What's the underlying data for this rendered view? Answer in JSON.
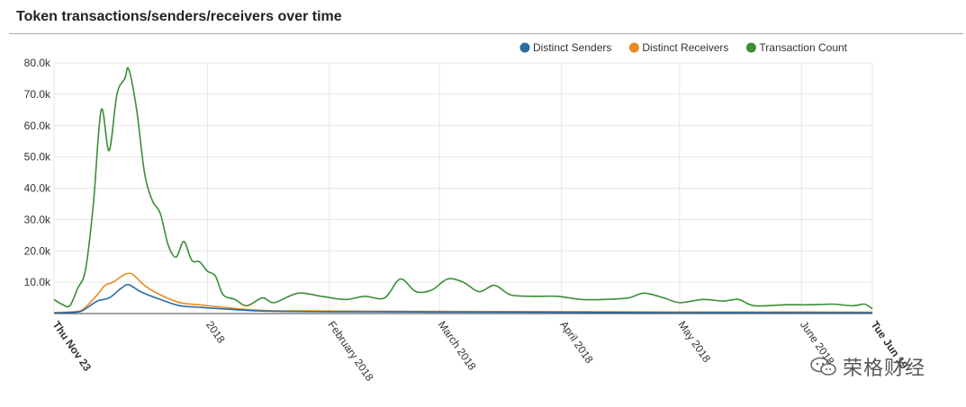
{
  "header": {
    "title": "Token transactions/senders/receivers over time"
  },
  "watermark": {
    "text": "荣格财经"
  },
  "colors": {
    "senders": "#2b6ca3",
    "receivers": "#e8891f",
    "transactions": "#3a8e36",
    "grid": "#e6e6e6",
    "axis": "#444444"
  },
  "chart_data": {
    "type": "line",
    "title": "Token transactions/senders/receivers over time",
    "legend_position": "top-right",
    "grid": true,
    "ylim": [
      0,
      80000
    ],
    "y_ticks": [
      10000,
      20000,
      30000,
      40000,
      50000,
      60000,
      70000,
      80000
    ],
    "y_tick_labels": [
      "10.0k",
      "20.0k",
      "30.0k",
      "40.0k",
      "50.0k",
      "60.0k",
      "70.0k",
      "80.0k"
    ],
    "xlim": [
      "2017-11-23",
      "2018-06-19"
    ],
    "x_ticks": [
      {
        "date": "2017-11-23",
        "label": "Thu Nov 23",
        "bold": true
      },
      {
        "date": "2018-01-01",
        "label": "2018",
        "bold": false
      },
      {
        "date": "2018-02-01",
        "label": "February 2018",
        "bold": false
      },
      {
        "date": "2018-03-01",
        "label": "March 2018",
        "bold": false
      },
      {
        "date": "2018-04-01",
        "label": "April 2018",
        "bold": false
      },
      {
        "date": "2018-05-01",
        "label": "May 2018",
        "bold": false
      },
      {
        "date": "2018-06-01",
        "label": "June 2018",
        "bold": false
      },
      {
        "date": "2018-06-19",
        "label": "Tue Jun 19",
        "bold": true
      }
    ],
    "series": [
      {
        "name": "Transaction Count",
        "color": "#3a8e36",
        "points": [
          [
            "2017-11-23",
            4500
          ],
          [
            "2017-11-25",
            3000
          ],
          [
            "2017-11-27",
            2500
          ],
          [
            "2017-11-29",
            8000
          ],
          [
            "2017-12-01",
            14000
          ],
          [
            "2017-12-03",
            35000
          ],
          [
            "2017-12-05",
            65000
          ],
          [
            "2017-12-07",
            52000
          ],
          [
            "2017-12-09",
            70000
          ],
          [
            "2017-12-11",
            75000
          ],
          [
            "2017-12-12",
            78000
          ],
          [
            "2017-12-14",
            65000
          ],
          [
            "2017-12-16",
            45000
          ],
          [
            "2017-12-18",
            36000
          ],
          [
            "2017-12-20",
            32000
          ],
          [
            "2017-12-22",
            22000
          ],
          [
            "2017-12-24",
            18000
          ],
          [
            "2017-12-26",
            23000
          ],
          [
            "2017-12-28",
            17000
          ],
          [
            "2017-12-30",
            16500
          ],
          [
            "2018-01-01",
            13500
          ],
          [
            "2018-01-03",
            12000
          ],
          [
            "2018-01-05",
            6000
          ],
          [
            "2018-01-08",
            4500
          ],
          [
            "2018-01-11",
            2500
          ],
          [
            "2018-01-15",
            5000
          ],
          [
            "2018-01-18",
            3500
          ],
          [
            "2018-01-24",
            6500
          ],
          [
            "2018-01-30",
            5500
          ],
          [
            "2018-02-05",
            4500
          ],
          [
            "2018-02-10",
            5500
          ],
          [
            "2018-02-15",
            5000
          ],
          [
            "2018-02-19",
            11000
          ],
          [
            "2018-02-23",
            7000
          ],
          [
            "2018-02-27",
            7500
          ],
          [
            "2018-03-03",
            11000
          ],
          [
            "2018-03-07",
            10000
          ],
          [
            "2018-03-11",
            7000
          ],
          [
            "2018-03-15",
            9000
          ],
          [
            "2018-03-19",
            6000
          ],
          [
            "2018-03-25",
            5500
          ],
          [
            "2018-03-31",
            5500
          ],
          [
            "2018-04-06",
            4500
          ],
          [
            "2018-04-12",
            4500
          ],
          [
            "2018-04-18",
            5000
          ],
          [
            "2018-04-22",
            6500
          ],
          [
            "2018-04-27",
            5000
          ],
          [
            "2018-05-01",
            3500
          ],
          [
            "2018-05-07",
            4500
          ],
          [
            "2018-05-12",
            4000
          ],
          [
            "2018-05-16",
            4500
          ],
          [
            "2018-05-20",
            2500
          ],
          [
            "2018-05-28",
            2800
          ],
          [
            "2018-06-03",
            2800
          ],
          [
            "2018-06-09",
            3000
          ],
          [
            "2018-06-14",
            2500
          ],
          [
            "2018-06-17",
            3000
          ],
          [
            "2018-06-19",
            1500
          ]
        ]
      },
      {
        "name": "Distinct Receivers",
        "color": "#e8891f",
        "points": [
          [
            "2017-11-23",
            300
          ],
          [
            "2017-11-29",
            700
          ],
          [
            "2017-12-01",
            2000
          ],
          [
            "2017-12-04",
            6000
          ],
          [
            "2017-12-06",
            9000
          ],
          [
            "2017-12-08",
            10000
          ],
          [
            "2017-12-11",
            12500
          ],
          [
            "2017-12-13",
            12500
          ],
          [
            "2017-12-16",
            9000
          ],
          [
            "2017-12-20",
            6000
          ],
          [
            "2017-12-25",
            3500
          ],
          [
            "2017-12-30",
            2800
          ],
          [
            "2018-01-05",
            2000
          ],
          [
            "2018-01-15",
            1000
          ],
          [
            "2018-02-01",
            800
          ],
          [
            "2018-03-01",
            700
          ],
          [
            "2018-04-01",
            600
          ],
          [
            "2018-05-01",
            500
          ],
          [
            "2018-06-01",
            500
          ],
          [
            "2018-06-19",
            400
          ]
        ]
      },
      {
        "name": "Distinct Senders",
        "color": "#2b6ca3",
        "points": [
          [
            "2017-11-23",
            200
          ],
          [
            "2017-11-29",
            500
          ],
          [
            "2017-12-01",
            1500
          ],
          [
            "2017-12-04",
            4000
          ],
          [
            "2017-12-07",
            5000
          ],
          [
            "2017-12-10",
            8000
          ],
          [
            "2017-12-12",
            9200
          ],
          [
            "2017-12-15",
            7000
          ],
          [
            "2017-12-20",
            4500
          ],
          [
            "2017-12-25",
            2500
          ],
          [
            "2017-12-30",
            2000
          ],
          [
            "2018-01-05",
            1500
          ],
          [
            "2018-01-15",
            800
          ],
          [
            "2018-02-01",
            600
          ],
          [
            "2018-03-01",
            500
          ],
          [
            "2018-04-01",
            400
          ],
          [
            "2018-05-01",
            300
          ],
          [
            "2018-06-01",
            300
          ],
          [
            "2018-06-19",
            250
          ]
        ]
      }
    ],
    "legend": [
      {
        "name": "Distinct Senders",
        "color": "#2b6ca3"
      },
      {
        "name": "Distinct Receivers",
        "color": "#e8891f"
      },
      {
        "name": "Transaction Count",
        "color": "#3a8e36"
      }
    ]
  }
}
